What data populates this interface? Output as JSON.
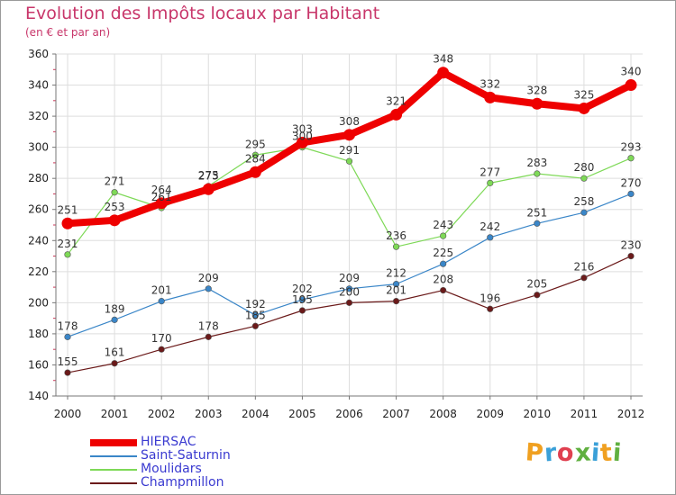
{
  "title": "Evolution des Impôts locaux par Habitant",
  "subtitle": "(en € et par an)",
  "logo_text": "Proxiti",
  "logo_colors": [
    "#f0a020",
    "#3aa0d8",
    "#e04050",
    "#60b040",
    "#3aa0d8",
    "#f0a020",
    "#60b040"
  ],
  "chart_data": {
    "type": "line",
    "title": "Evolution des Impôts locaux par Habitant",
    "subtitle": "(en € et par an)",
    "xlabel": "",
    "ylabel": "",
    "ylim": [
      140,
      360
    ],
    "yticks": [
      140,
      160,
      180,
      200,
      220,
      240,
      260,
      280,
      300,
      320,
      340,
      360
    ],
    "categories": [
      "2000",
      "2001",
      "2002",
      "2003",
      "2004",
      "2005",
      "2006",
      "2007",
      "2008",
      "2009",
      "2010",
      "2011",
      "2012"
    ],
    "series": [
      {
        "name": "HIERSAC",
        "color": "#ee0000",
        "values": [
          251,
          253,
          264,
          273,
          284,
          303,
          308,
          321,
          348,
          332,
          328,
          325,
          340
        ]
      },
      {
        "name": "Saint-Saturnin",
        "color": "#3a86c8",
        "values": [
          178,
          189,
          201,
          209,
          192,
          202,
          209,
          212,
          225,
          242,
          251,
          258,
          270
        ]
      },
      {
        "name": "Moulidars",
        "color": "#7ed957",
        "values": [
          231,
          271,
          261,
          275,
          295,
          300,
          291,
          236,
          243,
          277,
          283,
          280,
          293
        ]
      },
      {
        "name": "Champmillon",
        "color": "#6b1a1a",
        "values": [
          155,
          161,
          170,
          178,
          185,
          195,
          200,
          201,
          208,
          196,
          205,
          216,
          230
        ]
      }
    ]
  }
}
